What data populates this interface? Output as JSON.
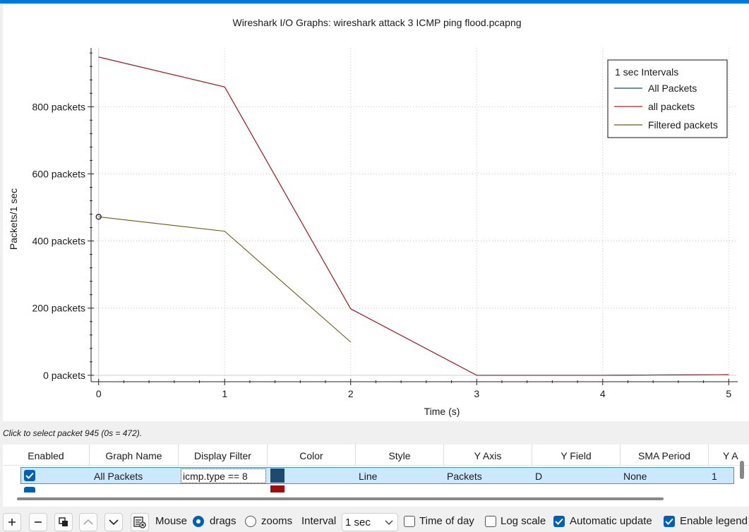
{
  "plot": {
    "title": "Wireshark I/O Graphs: wireshark attack 3 ICMP ping flood.pcapng"
  },
  "chart_data": {
    "type": "line",
    "title": "Wireshark I/O Graphs: wireshark attack 3 ICMP ping flood.pcapng",
    "xlabel": "Time (s)",
    "ylabel": "Packets/1 sec",
    "xlim": [
      -0.06,
      5.06
    ],
    "ylim": [
      -15,
      975
    ],
    "x_ticks": [
      0,
      1,
      2,
      3,
      4,
      5
    ],
    "y_ticks": [
      0,
      200,
      400,
      600,
      800
    ],
    "y_tick_labels": [
      "0 packets",
      "200 packets",
      "400 packets",
      "600 packets",
      "800 packets"
    ],
    "grid": true,
    "legend": {
      "placement": "top-right",
      "title": "1 sec Intervals"
    },
    "series": [
      {
        "name": "All Packets",
        "color": "#1d4a6e",
        "x": [
          0,
          1,
          2,
          3,
          4,
          5
        ],
        "y": [
          948,
          859,
          198,
          0,
          0,
          2
        ]
      },
      {
        "name": "all packets",
        "color": "#b01c1c",
        "x": [
          0,
          1,
          2,
          3,
          4,
          5
        ],
        "y": [
          948,
          859,
          198,
          0,
          0,
          2
        ]
      },
      {
        "name": "Filtered packets",
        "color": "#6b5a12",
        "x": [
          0,
          1,
          2
        ],
        "y": [
          472,
          429,
          99
        ]
      }
    ],
    "marker": {
      "x": 0,
      "y": 472
    }
  },
  "status": {
    "text": "Click to select packet 945 (0s = 472)."
  },
  "table": {
    "headers": [
      "Enabled",
      "Graph Name",
      "Display Filter",
      "Color",
      "Style",
      "Y Axis",
      "Y Field",
      "SMA Period",
      "Y A"
    ],
    "rows": [
      {
        "graph_name": "All Packets",
        "display_filter": "icmp.type == 8",
        "color": "#1d4a6e",
        "style": "Line",
        "y_axis": "Packets",
        "y_field": "D",
        "sma_period": "None",
        "y_col": "1"
      },
      {
        "color": "#a00f0f"
      }
    ]
  },
  "toolbar": {
    "mouse_label": "Mouse",
    "drags_label": "drags",
    "zooms_label": "zooms",
    "interval_label": "Interval",
    "interval_value": "1 sec",
    "time_of_day_label": "Time of day",
    "log_scale_label": "Log scale",
    "auto_update_label": "Automatic update",
    "enable_legend_label": "Enable legend"
  }
}
